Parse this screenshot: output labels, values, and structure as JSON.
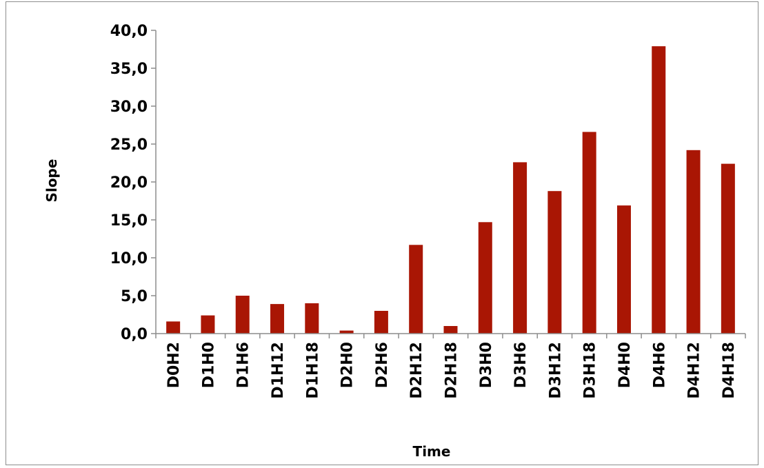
{
  "chart_data": {
    "type": "bar",
    "title": "",
    "xlabel": "Time",
    "ylabel": "Slope",
    "ylim": [
      0,
      40
    ],
    "yticks": [
      0,
      5,
      10,
      15,
      20,
      25,
      30,
      35,
      40
    ],
    "ytick_labels": [
      "0,0",
      "5,0",
      "10,0",
      "15,0",
      "20,0",
      "25,0",
      "30,0",
      "35,0",
      "40,0"
    ],
    "categories": [
      "D0H2",
      "D1H0",
      "D1H6",
      "D1H12",
      "D1H18",
      "D2H0",
      "D2H6",
      "D2H12",
      "D2H18",
      "D3H0",
      "D3H6",
      "D3H12",
      "D3H18",
      "D4H0",
      "D4H6",
      "D4H12",
      "D4H18"
    ],
    "values": [
      1.6,
      2.4,
      5.0,
      3.9,
      4.0,
      0.4,
      3.0,
      11.7,
      1.0,
      14.7,
      22.6,
      18.8,
      26.6,
      16.9,
      37.9,
      24.2,
      22.4
    ],
    "grid": false,
    "legend": "none",
    "bar_color": "#a91604"
  }
}
